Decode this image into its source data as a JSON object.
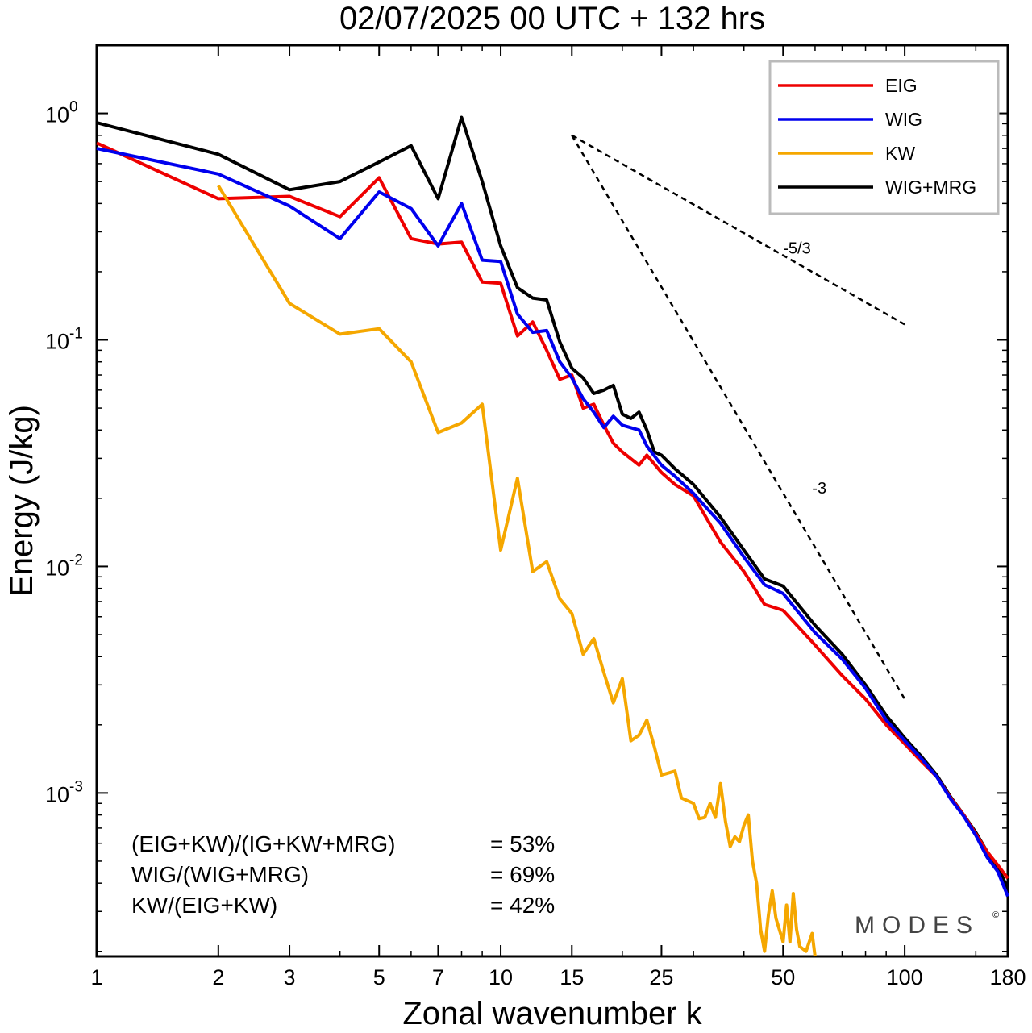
{
  "chart_data": {
    "type": "line",
    "title": "02/07/2025  00 UTC  + 132 hrs",
    "xlabel": "Zonal wavenumber k",
    "ylabel": "Energy (J/kg)",
    "xscale": "log",
    "yscale": "log",
    "xlim": [
      1,
      180
    ],
    "ylim": [
      0.00019,
      2.0
    ],
    "x_ticks": [
      1,
      2,
      3,
      5,
      7,
      10,
      15,
      25,
      50,
      100,
      180
    ],
    "x_tick_labels": [
      "1",
      "2",
      "3",
      "5",
      "7",
      "10",
      "15",
      "25",
      "50",
      "100",
      "180"
    ],
    "y_ticks": [
      {
        "value": 1,
        "base": "10",
        "exp": "0"
      },
      {
        "value": 0.1,
        "base": "10",
        "exp": "-1"
      },
      {
        "value": 0.01,
        "base": "10",
        "exp": "-2"
      },
      {
        "value": 0.001,
        "base": "10",
        "exp": "-3"
      }
    ],
    "legend_position": "top-right",
    "series": [
      {
        "name": "EIG",
        "color": "#ee0000",
        "points": [
          [
            1,
            0.74
          ],
          [
            2,
            0.42
          ],
          [
            3,
            0.43
          ],
          [
            4,
            0.35
          ],
          [
            5,
            0.52
          ],
          [
            6,
            0.28
          ],
          [
            7,
            0.265
          ],
          [
            8,
            0.27
          ],
          [
            9,
            0.18
          ],
          [
            10,
            0.178
          ],
          [
            11,
            0.104
          ],
          [
            12,
            0.12
          ],
          [
            13,
            0.09
          ],
          [
            14,
            0.067
          ],
          [
            15,
            0.07
          ],
          [
            16,
            0.05
          ],
          [
            17,
            0.052
          ],
          [
            18,
            0.042
          ],
          [
            19,
            0.035
          ],
          [
            20,
            0.032
          ],
          [
            22,
            0.028
          ],
          [
            23,
            0.031
          ],
          [
            25,
            0.026
          ],
          [
            27,
            0.023
          ],
          [
            30,
            0.0205
          ],
          [
            35,
            0.0128
          ],
          [
            40,
            0.0095
          ],
          [
            45,
            0.0068
          ],
          [
            50,
            0.0064
          ],
          [
            60,
            0.0045
          ],
          [
            70,
            0.0033
          ],
          [
            80,
            0.0026
          ],
          [
            90,
            0.002
          ],
          [
            100,
            0.00165
          ],
          [
            110,
            0.00138
          ],
          [
            120,
            0.00118
          ],
          [
            130,
            0.00095
          ],
          [
            140,
            0.0008
          ],
          [
            150,
            0.00066
          ],
          [
            160,
            0.00055
          ],
          [
            170,
            0.00048
          ],
          [
            180,
            0.00042
          ]
        ]
      },
      {
        "name": "WIG",
        "color": "#0000ee",
        "points": [
          [
            1,
            0.7
          ],
          [
            2,
            0.54
          ],
          [
            3,
            0.39
          ],
          [
            4,
            0.28
          ],
          [
            5,
            0.45
          ],
          [
            6,
            0.38
          ],
          [
            7,
            0.26
          ],
          [
            8,
            0.4
          ],
          [
            9,
            0.225
          ],
          [
            10,
            0.222
          ],
          [
            11,
            0.13
          ],
          [
            12,
            0.108
          ],
          [
            13,
            0.11
          ],
          [
            14,
            0.08
          ],
          [
            15,
            0.068
          ],
          [
            16,
            0.055
          ],
          [
            17,
            0.048
          ],
          [
            18,
            0.041
          ],
          [
            19,
            0.046
          ],
          [
            20,
            0.042
          ],
          [
            22,
            0.04
          ],
          [
            23,
            0.034
          ],
          [
            25,
            0.028
          ],
          [
            27,
            0.025
          ],
          [
            30,
            0.021
          ],
          [
            35,
            0.0155
          ],
          [
            40,
            0.011
          ],
          [
            45,
            0.0083
          ],
          [
            50,
            0.0076
          ],
          [
            60,
            0.0051
          ],
          [
            70,
            0.0039
          ],
          [
            80,
            0.0029
          ],
          [
            90,
            0.0021
          ],
          [
            100,
            0.0017
          ],
          [
            110,
            0.00142
          ],
          [
            120,
            0.00118
          ],
          [
            130,
            0.00094
          ],
          [
            140,
            0.00079
          ],
          [
            150,
            0.00065
          ],
          [
            160,
            0.00052
          ],
          [
            170,
            0.00045
          ],
          [
            180,
            0.00035
          ]
        ]
      },
      {
        "name": "KW",
        "color": "#f5a700",
        "points": [
          [
            2,
            0.48
          ],
          [
            3,
            0.145
          ],
          [
            4,
            0.106
          ],
          [
            5,
            0.112
          ],
          [
            6,
            0.08
          ],
          [
            7,
            0.039
          ],
          [
            8,
            0.043
          ],
          [
            9,
            0.052
          ],
          [
            10,
            0.0118
          ],
          [
            11,
            0.0245
          ],
          [
            12,
            0.0095
          ],
          [
            13,
            0.0105
          ],
          [
            14,
            0.0072
          ],
          [
            15,
            0.0062
          ],
          [
            16,
            0.0041
          ],
          [
            17,
            0.0048
          ],
          [
            18,
            0.0034
          ],
          [
            19,
            0.0025
          ],
          [
            20,
            0.0032
          ],
          [
            21,
            0.0017
          ],
          [
            22,
            0.0018
          ],
          [
            23,
            0.0021
          ],
          [
            24,
            0.0016
          ],
          [
            25,
            0.0012
          ],
          [
            27,
            0.00125
          ],
          [
            28,
            0.00095
          ],
          [
            30,
            0.0009
          ],
          [
            31,
            0.00077
          ],
          [
            32,
            0.00078
          ],
          [
            33,
            0.0009
          ],
          [
            34,
            0.00078
          ],
          [
            35,
            0.0011
          ],
          [
            36,
            0.00075
          ],
          [
            37,
            0.00058
          ],
          [
            38,
            0.00064
          ],
          [
            39,
            0.00061
          ],
          [
            40,
            0.00072
          ],
          [
            41,
            0.0008
          ],
          [
            42,
            0.0005
          ],
          [
            43,
            0.0004
          ],
          [
            44,
            0.00025
          ],
          [
            45,
            0.0002
          ],
          [
            46,
            0.00029
          ],
          [
            47,
            0.00037
          ],
          [
            48,
            0.00028
          ],
          [
            50,
            0.00022
          ],
          [
            51,
            0.00032
          ],
          [
            52,
            0.00022
          ],
          [
            53,
            0.00036
          ],
          [
            54,
            0.00025
          ],
          [
            55,
            0.00021
          ],
          [
            57,
            0.0002
          ],
          [
            59,
            0.00024
          ],
          [
            60,
            0.00019
          ]
        ]
      },
      {
        "name": "WIG+MRG",
        "color": "#000000",
        "points": [
          [
            1,
            0.91
          ],
          [
            2,
            0.66
          ],
          [
            3,
            0.46
          ],
          [
            4,
            0.5
          ],
          [
            5,
            0.61
          ],
          [
            6,
            0.72
          ],
          [
            7,
            0.42
          ],
          [
            8,
            0.96
          ],
          [
            9,
            0.5
          ],
          [
            10,
            0.26
          ],
          [
            11,
            0.17
          ],
          [
            12,
            0.153
          ],
          [
            13,
            0.15
          ],
          [
            14,
            0.098
          ],
          [
            15,
            0.075
          ],
          [
            16,
            0.068
          ],
          [
            17,
            0.058
          ],
          [
            18,
            0.06
          ],
          [
            19,
            0.063
          ],
          [
            20,
            0.047
          ],
          [
            21,
            0.045
          ],
          [
            22,
            0.048
          ],
          [
            23,
            0.04
          ],
          [
            24,
            0.032
          ],
          [
            25,
            0.031
          ],
          [
            27,
            0.027
          ],
          [
            30,
            0.023
          ],
          [
            35,
            0.0165
          ],
          [
            40,
            0.0118
          ],
          [
            45,
            0.0088
          ],
          [
            50,
            0.0082
          ],
          [
            60,
            0.0055
          ],
          [
            70,
            0.0041
          ],
          [
            80,
            0.003
          ],
          [
            90,
            0.0022
          ],
          [
            100,
            0.00175
          ],
          [
            110,
            0.00145
          ],
          [
            120,
            0.0012
          ],
          [
            130,
            0.00096
          ],
          [
            140,
            0.0008
          ],
          [
            150,
            0.00067
          ],
          [
            160,
            0.00055
          ],
          [
            170,
            0.00047
          ],
          [
            180,
            0.00038
          ]
        ]
      }
    ],
    "reference_lines": [
      {
        "label": "-5/3",
        "from": [
          15,
          0.8
        ],
        "to": [
          100,
          0.117
        ],
        "label_at": [
          50,
          0.24
        ]
      },
      {
        "label": "-3",
        "from": [
          15,
          0.8
        ],
        "to": [
          100,
          0.0026
        ],
        "label_at": [
          59,
          0.021
        ]
      }
    ],
    "ratios": [
      {
        "label": "(EIG+KW)/(IG+KW+MRG)",
        "value": "= 53%"
      },
      {
        "label": "WIG/(WIG+MRG)",
        "value": "= 69%"
      },
      {
        "label": "KW/(EIG+KW)",
        "value": "= 42%"
      }
    ],
    "logo": "MODES",
    "logo_mark": "©"
  }
}
